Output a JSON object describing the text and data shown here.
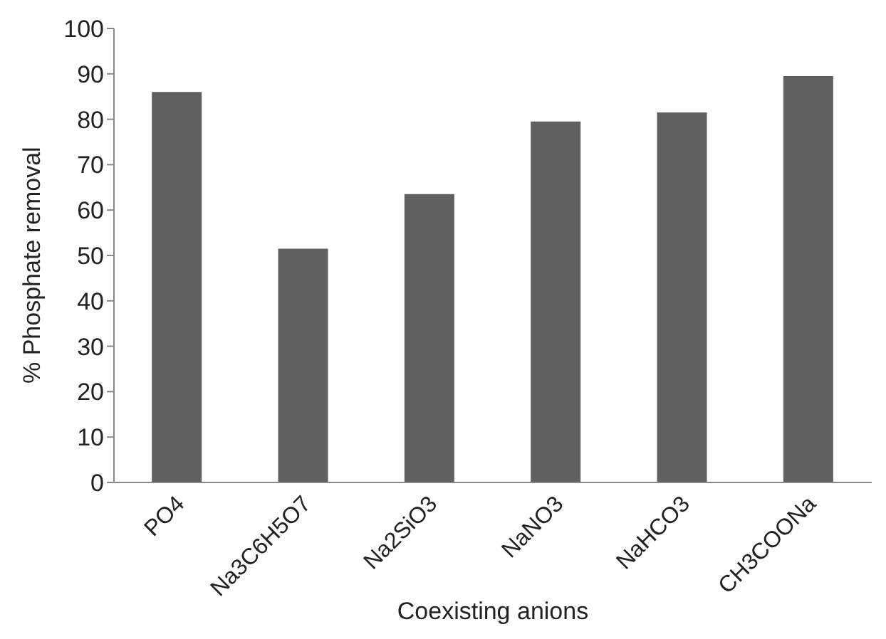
{
  "chart_data": {
    "type": "bar",
    "xlabel": "Coexisting anions",
    "ylabel": "% Phosphate   removal",
    "categories": [
      "PO4",
      "Na3C6H5O7",
      "Na2SiO3",
      "NaNO3",
      "NaHCO3",
      "CH3COONa"
    ],
    "values": [
      86,
      51.5,
      63.5,
      79.5,
      81.5,
      89.5
    ],
    "color": "#606060",
    "ylim": [
      0,
      100
    ],
    "yticks": [
      0,
      10,
      20,
      30,
      40,
      50,
      60,
      70,
      80,
      90,
      100
    ],
    "grid": false,
    "legend": false
  }
}
